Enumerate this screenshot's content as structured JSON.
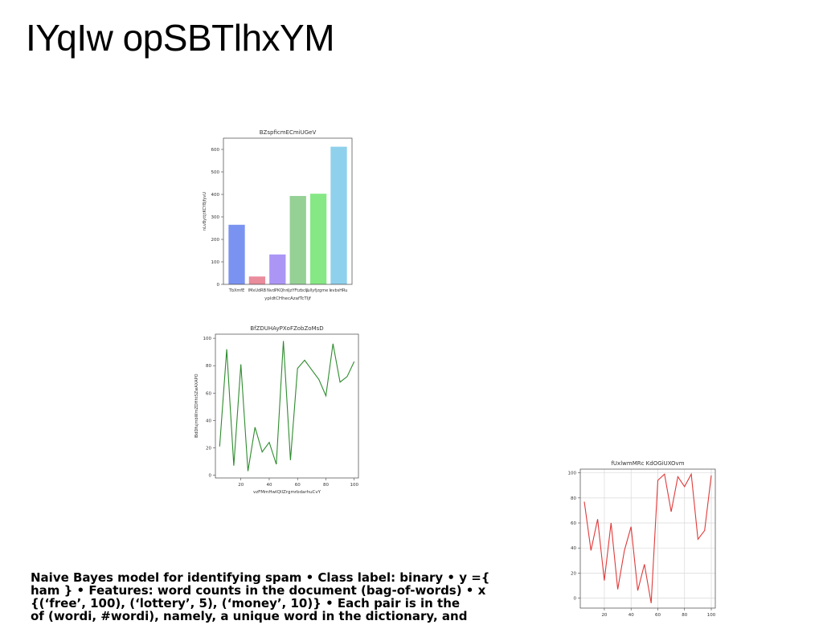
{
  "slide": {
    "title": "IYqIw opSBTlhxYM",
    "body_lines": [
      "Naive Bayes model for identifying spam • Class label: binary • y ={",
      "ham } • Features: word counts in the document (bag-of-words) • x",
      "{(‘free’, 100), (‘lottery’, 5), (‘money’, 10)} • Each pair is in the",
      "of (wordi, #wordi), namely, a unique word in the dictionary, and"
    ]
  },
  "chart_data": [
    {
      "type": "bar",
      "title": "BZspficmECmiUGeV",
      "xlabel": "ypldtCHhecAzafTcTIjf",
      "ylabel": "nLvByttjtKCYBjfyvU",
      "categories": [
        "TbXmfE",
        "lMxUdRB",
        "NvdPKQhn",
        "IjzYFtzbcU",
        "jullyfjzgme I",
        "evbsHRu"
      ],
      "values": [
        265,
        35,
        133,
        393,
        403,
        612
      ],
      "colors": [
        "#7b93f0",
        "#e98c9c",
        "#ac96f5",
        "#95d095",
        "#85e885",
        "#8fd0ec"
      ],
      "ylim": [
        0,
        650
      ],
      "yticks": [
        0,
        100,
        200,
        300,
        400,
        500,
        600
      ],
      "grid": false
    },
    {
      "type": "line",
      "title": "BfZDUHAyPXoFZobZoMsD",
      "xlabel": "vzFMmHwlQIlZrgmrbdarhuCvY",
      "ylabel": "lBdDfujmbWmZDHhtSZwAXAPO",
      "color": "#2e8b2e",
      "x": [
        5,
        10,
        15,
        20,
        25,
        30,
        35,
        40,
        45,
        50,
        55,
        60,
        65,
        70,
        75,
        80,
        85,
        90,
        95,
        100
      ],
      "y": [
        21,
        92,
        7,
        81,
        3,
        35,
        17,
        24,
        8,
        98,
        11,
        78,
        84,
        77,
        70,
        58,
        96,
        68,
        72,
        83
      ],
      "xlim": [
        2,
        103
      ],
      "ylim": [
        -2,
        103
      ],
      "xticks": [
        20,
        40,
        60,
        80,
        100
      ],
      "yticks": [
        0,
        20,
        40,
        60,
        80,
        100
      ],
      "grid": false
    },
    {
      "type": "line",
      "title": "fUxlwmMRc KdOGiUXOvm",
      "xlabel": "",
      "ylabel": "",
      "color": "#e03a3a",
      "x": [
        5,
        10,
        15,
        20,
        25,
        30,
        35,
        40,
        45,
        50,
        55,
        60,
        65,
        70,
        75,
        80,
        85,
        90,
        95,
        100
      ],
      "y": [
        77,
        38,
        63,
        14,
        60,
        7,
        38,
        57,
        6,
        27,
        -4,
        94,
        99,
        69,
        97,
        89,
        99,
        47,
        54,
        98
      ],
      "xlim": [
        2,
        103
      ],
      "ylim": [
        -8,
        103
      ],
      "xticks": [
        20,
        40,
        60,
        80,
        100
      ],
      "yticks": [
        0,
        20,
        40,
        60,
        80,
        100
      ],
      "grid": true
    }
  ]
}
